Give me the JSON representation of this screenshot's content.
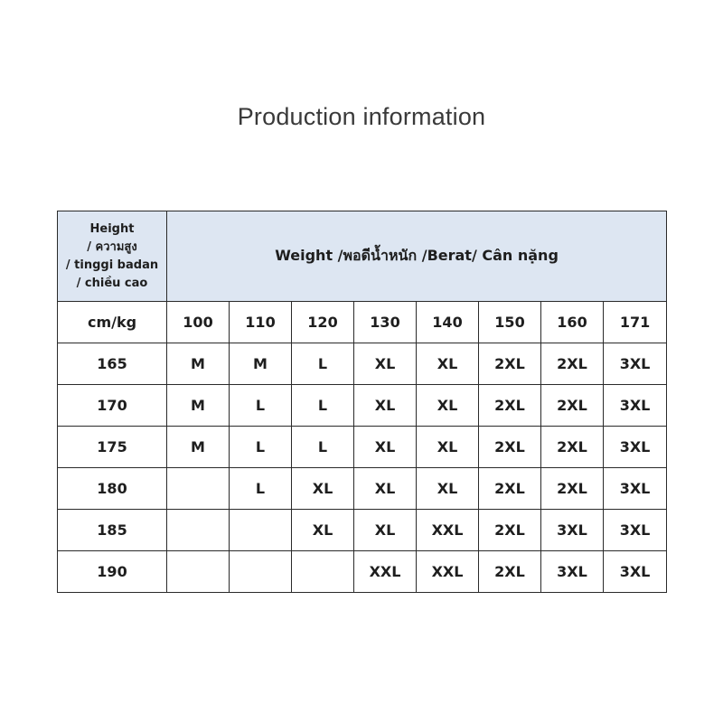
{
  "title": "Production information",
  "table": {
    "height_header": [
      "Height",
      "/ ความสูง",
      "/  tinggi badan",
      "/ chiều cao"
    ],
    "weight_header": "Weight /พอดีน้ำหนัก /Berat/ Cân nặng",
    "unit_label": "cm/kg",
    "weights": [
      "100",
      "110",
      "120",
      "130",
      "140",
      "150",
      "160",
      "171"
    ],
    "rows": [
      {
        "height": "165",
        "sizes": [
          "M",
          "M",
          "L",
          "XL",
          "XL",
          "2XL",
          "2XL",
          "3XL"
        ]
      },
      {
        "height": "170",
        "sizes": [
          "M",
          "L",
          "L",
          "XL",
          "XL",
          "2XL",
          "2XL",
          "3XL"
        ]
      },
      {
        "height": "175",
        "sizes": [
          "M",
          "L",
          "L",
          "XL",
          "XL",
          "2XL",
          "2XL",
          "3XL"
        ]
      },
      {
        "height": "180",
        "sizes": [
          "",
          "L",
          "XL",
          "XL",
          "XL",
          "2XL",
          "2XL",
          "3XL"
        ]
      },
      {
        "height": "185",
        "sizes": [
          "",
          "",
          "XL",
          "XL",
          "XXL",
          "2XL",
          "3XL",
          "3XL"
        ]
      },
      {
        "height": "190",
        "sizes": [
          "",
          "",
          "",
          "XXL",
          "XXL",
          "2XL",
          "3XL",
          "3XL"
        ]
      }
    ]
  }
}
